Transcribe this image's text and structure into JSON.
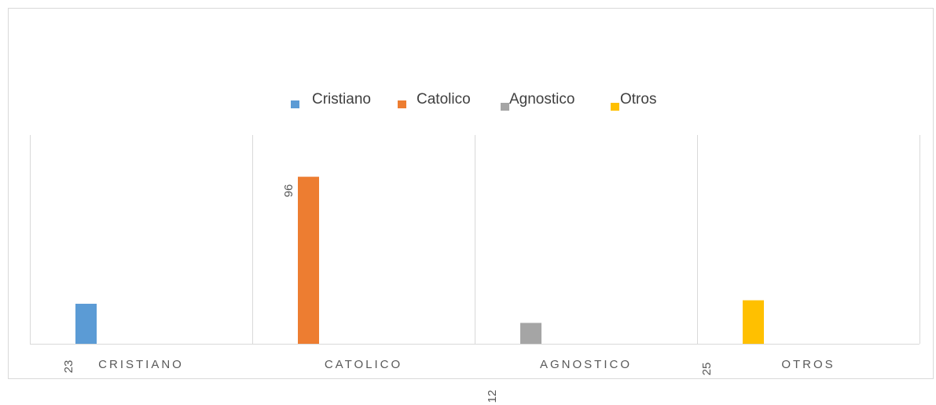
{
  "chart_data": {
    "type": "bar",
    "categories": [
      "CRISTIANO",
      "CATOLICO",
      "AGNOSTICO",
      "OTROS"
    ],
    "series": [
      {
        "name": "Cristiano",
        "color": "#5b9bd5",
        "values": [
          23,
          null,
          null,
          null
        ]
      },
      {
        "name": "Catolico",
        "color": "#ed7d31",
        "values": [
          null,
          96,
          null,
          null
        ]
      },
      {
        "name": "Agnostico",
        "color": "#a5a5a5",
        "values": [
          null,
          null,
          12,
          null
        ]
      },
      {
        "name": "Otros",
        "color": "#ffc000",
        "values": [
          null,
          null,
          null,
          25
        ]
      }
    ],
    "ylim": [
      0,
      120
    ],
    "grid": true,
    "legend": "top"
  }
}
